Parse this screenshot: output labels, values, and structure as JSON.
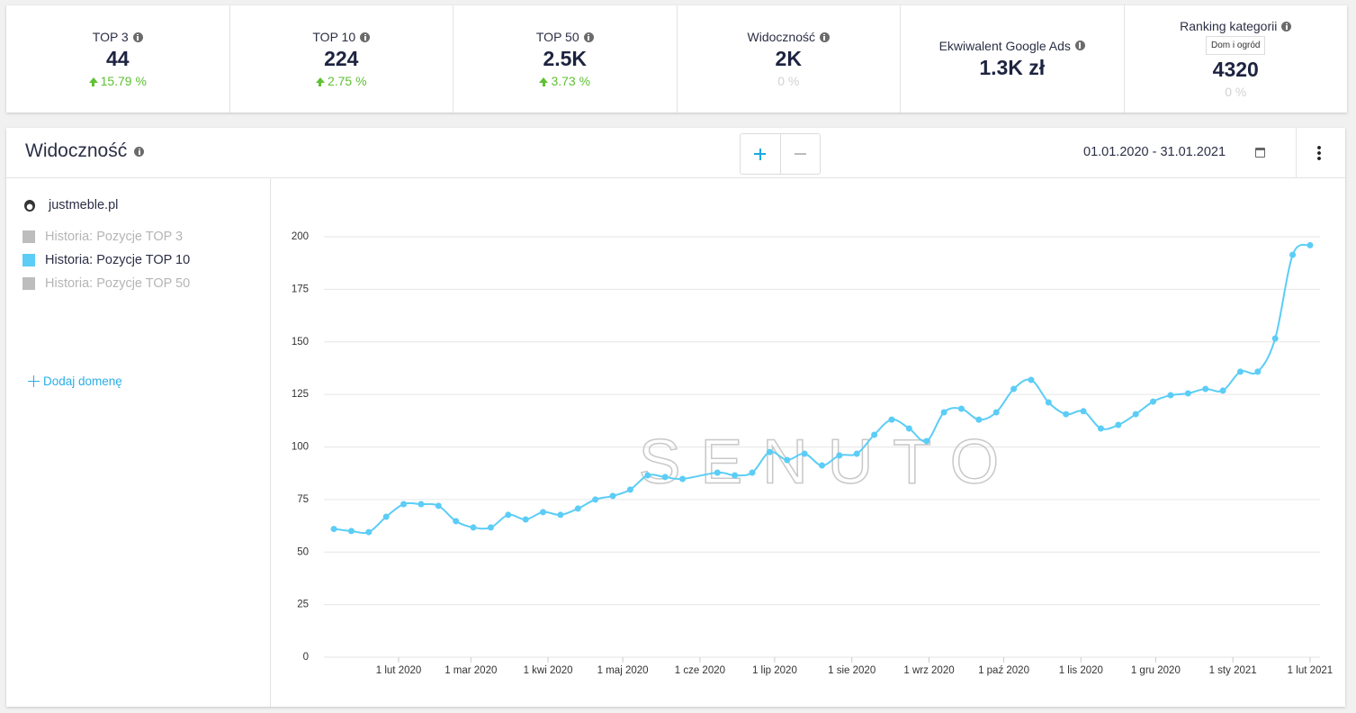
{
  "kpis": [
    {
      "label": "TOP 3",
      "value": "44",
      "change": "15.79 %",
      "trend": "up"
    },
    {
      "label": "TOP 10",
      "value": "224",
      "change": "2.75 %",
      "trend": "up"
    },
    {
      "label": "TOP 50",
      "value": "2.5K",
      "change": "3.73 %",
      "trend": "up"
    },
    {
      "label": "Widoczność",
      "value": "2K",
      "change": "0 %",
      "trend": "flat"
    },
    {
      "label": "Ekwiwalent Google Ads",
      "value": "1.3K zł"
    },
    {
      "label": "Ranking kategorii",
      "badge": "Dom i ogród",
      "value": "4320",
      "change": "0 %",
      "trend": "flat"
    }
  ],
  "panel": {
    "title": "Widoczność",
    "date_range": "01.01.2020 - 31.01.2021"
  },
  "sidebar": {
    "domain": "justmeble.pl",
    "toggle_top3": {
      "name": "Historia: Pozycje TOP 3",
      "color": "#bdbdbd"
    },
    "toggle_top50": {
      "name": "Historia: Pozycje TOP 50",
      "color": "#bdbdbd"
    },
    "add_domain": "Dodaj domenę"
  },
  "chart_data": {
    "type": "line",
    "watermark": "SENUTO",
    "x": [
      "2020-01-06",
      "2020-01-13",
      "2020-01-20",
      "2020-01-27",
      "2020-02-03",
      "2020-02-10",
      "2020-02-17",
      "2020-02-24",
      "2020-03-02",
      "2020-03-09",
      "2020-03-16",
      "2020-03-23",
      "2020-03-30",
      "2020-04-06",
      "2020-04-13",
      "2020-04-20",
      "2020-04-27",
      "2020-05-04",
      "2020-05-11",
      "2020-05-18",
      "2020-05-25",
      "2020-06-08",
      "2020-06-15",
      "2020-06-22",
      "2020-06-29",
      "2020-07-06",
      "2020-07-13",
      "2020-07-20",
      "2020-07-27",
      "2020-08-03",
      "2020-08-10",
      "2020-08-17",
      "2020-08-24",
      "2020-08-31",
      "2020-09-07",
      "2020-09-14",
      "2020-09-21",
      "2020-09-28",
      "2020-10-05",
      "2020-10-12",
      "2020-10-19",
      "2020-10-26",
      "2020-11-02",
      "2020-11-09",
      "2020-11-16",
      "2020-11-23",
      "2020-11-30",
      "2020-12-07",
      "2020-12-14",
      "2020-12-21",
      "2020-12-28",
      "2021-01-04",
      "2021-01-11",
      "2021-01-18",
      "2021-01-25",
      "2021-02-01"
    ],
    "series": [
      {
        "name": "Historia: Pozycje TOP 10",
        "color": "#5bcdf6",
        "values": [
          61,
          60,
          59.5,
          66.8,
          72.8,
          72.8,
          72,
          64.7,
          61.7,
          61.7,
          67.7,
          65.5,
          69,
          67.7,
          70.7,
          75,
          76.7,
          79.7,
          86.5,
          85.7,
          84.8,
          87.8,
          86.5,
          87.8,
          97.6,
          93.8,
          96.8,
          91.2,
          96,
          96.8,
          105.8,
          113,
          108.8,
          102.8,
          116.5,
          118.2,
          113,
          116.5,
          127.6,
          131.9,
          121.2,
          115.6,
          117,
          108.8,
          110.5,
          115.6,
          121.6,
          124.6,
          125.5,
          127.6,
          126.8,
          135.8,
          135.8,
          151.6,
          191.4,
          196
        ]
      }
    ],
    "xlim": [
      "2020-01-02",
      "2021-02-05"
    ],
    "xticks": [
      {
        "value": "2020-02-01",
        "label": "1 lut 2020"
      },
      {
        "value": "2020-03-01",
        "label": "1 mar 2020"
      },
      {
        "value": "2020-04-01",
        "label": "1 kwi 2020"
      },
      {
        "value": "2020-05-01",
        "label": "1 maj 2020"
      },
      {
        "value": "2020-06-01",
        "label": "1 cze 2020"
      },
      {
        "value": "2020-07-01",
        "label": "1 lip 2020"
      },
      {
        "value": "2020-08-01",
        "label": "1 sie 2020"
      },
      {
        "value": "2020-09-01",
        "label": "1 wrz 2020"
      },
      {
        "value": "2020-10-01",
        "label": "1 paź 2020"
      },
      {
        "value": "2020-11-01",
        "label": "1 lis 2020"
      },
      {
        "value": "2020-12-01",
        "label": "1 gru 2020"
      },
      {
        "value": "2021-01-01",
        "label": "1 sty 2021"
      },
      {
        "value": "2021-02-01",
        "label": "1 lut 2021"
      }
    ],
    "ylim": [
      0,
      200
    ],
    "yticks": [
      0,
      25,
      50,
      75,
      100,
      125,
      150,
      175,
      200
    ],
    "grid": true
  }
}
